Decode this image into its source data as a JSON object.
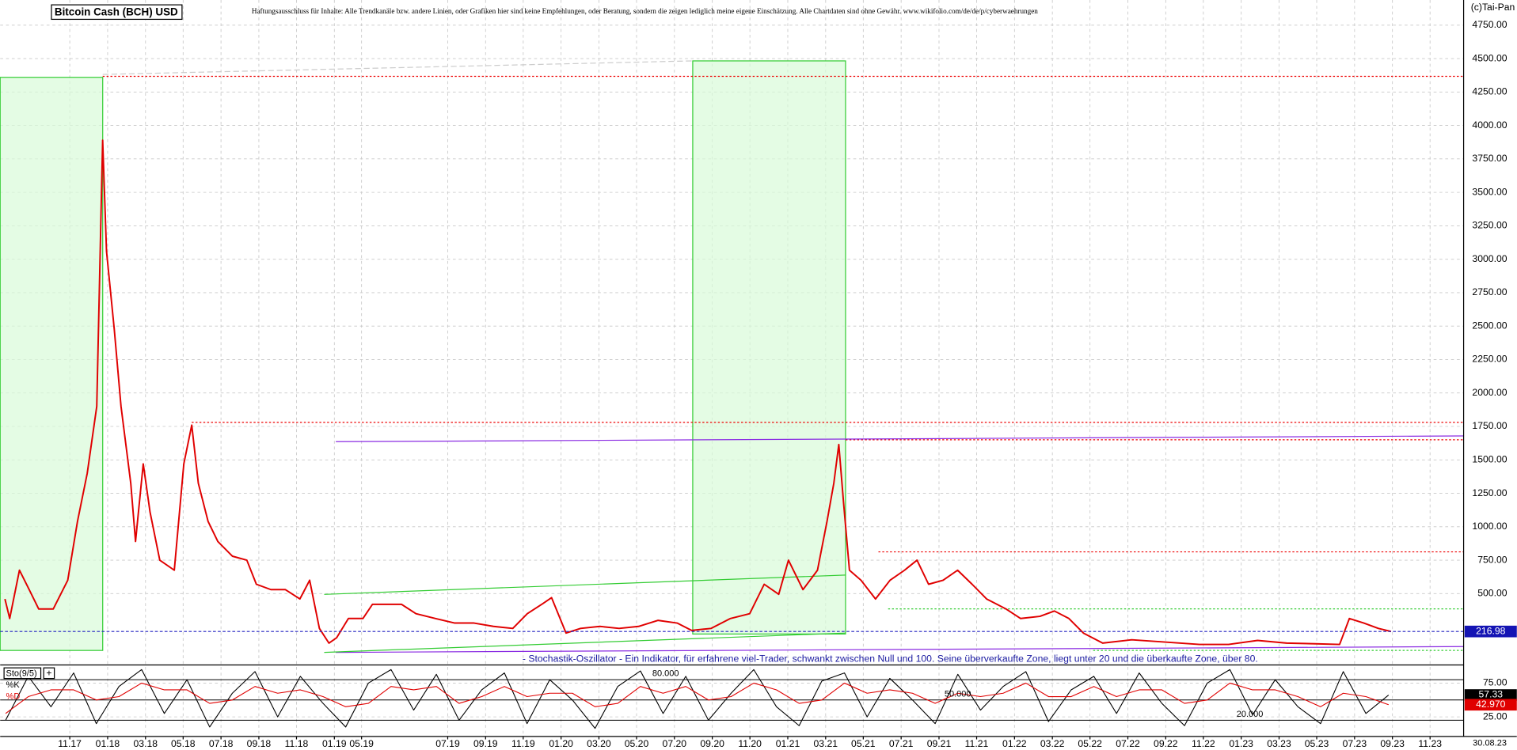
{
  "chart_data": [
    {
      "type": "line",
      "title": "Bitcoin Cash (BCH) USD",
      "subtitle": "Haftungsausschluss für Inhalte: Alle Trendkanäle bzw. andere Linien, oder Grafiken hier sind keine Empfehlungen, oder Beratung, sondern die zeigen lediglich meine eigene Einschätzung. Alle Chartdaten sind ohne Gewähr.  www.wikifolio.com/de/de/p/cyberwaehrungen",
      "copyright": "(c)Tai-Pan",
      "date_label": "30.08.23",
      "current": {
        "value": 216.98,
        "label": "216.98"
      },
      "grid": true,
      "xlim": [
        2017.526,
        2023.981
      ],
      "xticks": [
        {
          "value": 2017.833,
          "label": "11.17"
        },
        {
          "value": 2018.0,
          "label": "01.18"
        },
        {
          "value": 2018.167,
          "label": "03.18"
        },
        {
          "value": 2018.333,
          "label": "05.18"
        },
        {
          "value": 2018.5,
          "label": "07.18"
        },
        {
          "value": 2018.667,
          "label": "09.18"
        },
        {
          "value": 2018.833,
          "label": "11.18"
        },
        {
          "value": 2019.0,
          "label": "01.19"
        },
        {
          "value": 2019.12,
          "label": "05.19"
        },
        {
          "value": 2019.5,
          "label": "07.19"
        },
        {
          "value": 2019.667,
          "label": "09.19"
        },
        {
          "value": 2019.833,
          "label": "11.19"
        },
        {
          "value": 2020.0,
          "label": "01.20"
        },
        {
          "value": 2020.167,
          "label": "03.20"
        },
        {
          "value": 2020.333,
          "label": "05.20"
        },
        {
          "value": 2020.5,
          "label": "07.20"
        },
        {
          "value": 2020.667,
          "label": "09.20"
        },
        {
          "value": 2020.833,
          "label": "11.20"
        },
        {
          "value": 2021.0,
          "label": "01.21"
        },
        {
          "value": 2021.167,
          "label": "03.21"
        },
        {
          "value": 2021.333,
          "label": "05.21"
        },
        {
          "value": 2021.5,
          "label": "07.21"
        },
        {
          "value": 2021.667,
          "label": "09.21"
        },
        {
          "value": 2021.833,
          "label": "11.21"
        },
        {
          "value": 2022.0,
          "label": "01.22"
        },
        {
          "value": 2022.167,
          "label": "03.22"
        },
        {
          "value": 2022.333,
          "label": "05.22"
        },
        {
          "value": 2022.5,
          "label": "07.22"
        },
        {
          "value": 2022.667,
          "label": "09.22"
        },
        {
          "value": 2022.833,
          "label": "11.22"
        },
        {
          "value": 2023.0,
          "label": "01.23"
        },
        {
          "value": 2023.167,
          "label": "03.23"
        },
        {
          "value": 2023.333,
          "label": "05.23"
        },
        {
          "value": 2023.5,
          "label": "07.23"
        },
        {
          "value": 2023.667,
          "label": "09.23"
        },
        {
          "value": 2023.833,
          "label": "11.23"
        }
      ],
      "ylim": [
        0,
        4938
      ],
      "yticks": [
        {
          "value": 500,
          "label": "500.00"
        },
        {
          "value": 750,
          "label": "750.00"
        },
        {
          "value": 1000,
          "label": "1000.00"
        },
        {
          "value": 1250,
          "label": "1250.00"
        },
        {
          "value": 1500,
          "label": "1500.00"
        },
        {
          "value": 1750,
          "label": "1750.00"
        },
        {
          "value": 2000,
          "label": "2000.00"
        },
        {
          "value": 2250,
          "label": "2250.00"
        },
        {
          "value": 2500,
          "label": "2500.00"
        },
        {
          "value": 2750,
          "label": "2750.00"
        },
        {
          "value": 3000,
          "label": "3000.00"
        },
        {
          "value": 3250,
          "label": "3250.00"
        },
        {
          "value": 3500,
          "label": "3500.00"
        },
        {
          "value": 3750,
          "label": "3750.00"
        },
        {
          "value": 4000,
          "label": "4000.00"
        },
        {
          "value": 4250,
          "label": "4250.00"
        },
        {
          "value": 4500,
          "label": "4500.00"
        },
        {
          "value": 4750,
          "label": "4750.00"
        }
      ],
      "x": [
        2017.547,
        2017.568,
        2017.611,
        2017.654,
        2017.696,
        2017.76,
        2017.824,
        2017.867,
        2017.91,
        2017.952,
        2017.978,
        2017.995,
        2018.029,
        2018.059,
        2018.102,
        2018.123,
        2018.157,
        2018.187,
        2018.23,
        2018.294,
        2018.336,
        2018.371,
        2018.4,
        2018.443,
        2018.486,
        2018.55,
        2018.614,
        2018.656,
        2018.72,
        2018.784,
        2018.848,
        2018.891,
        2018.934,
        2018.976,
        2019.01,
        2019.062,
        2019.126,
        2019.168,
        2019.232,
        2019.296,
        2019.36,
        2019.446,
        2019.531,
        2019.616,
        2019.702,
        2019.787,
        2019.851,
        2019.915,
        2019.958,
        2020.022,
        2020.086,
        2020.171,
        2020.256,
        2020.342,
        2020.427,
        2020.512,
        2020.576,
        2020.662,
        2020.747,
        2020.832,
        2020.896,
        2020.96,
        2021.003,
        2021.067,
        2021.131,
        2021.173,
        2021.203,
        2021.225,
        2021.246,
        2021.272,
        2021.323,
        2021.387,
        2021.451,
        2021.515,
        2021.57,
        2021.621,
        2021.685,
        2021.749,
        2021.813,
        2021.877,
        2021.963,
        2022.027,
        2022.112,
        2022.176,
        2022.24,
        2022.304,
        2022.389,
        2022.517,
        2022.645,
        2022.816,
        2022.944,
        2023.072,
        2023.2,
        2023.328,
        2023.434,
        2023.477,
        2023.541,
        2023.605,
        2023.661
      ],
      "series": [
        {
          "name": "Bitcoin Cash (BCH) USD",
          "color": "#e00000",
          "values": [
            460,
            314,
            675,
            530,
            385,
            385,
            600,
            1040,
            1400,
            1900,
            3890,
            3060,
            2480,
            1900,
            1325,
            890,
            1470,
            1110,
            750,
            675,
            1470,
            1760,
            1325,
            1040,
            890,
            780,
            750,
            570,
            530,
            530,
            460,
            600,
            240,
            130,
            170,
            314,
            314,
            420,
            420,
            420,
            350,
            314,
            280,
            280,
            255,
            240,
            350,
            420,
            470,
            205,
            240,
            255,
            240,
            255,
            300,
            280,
            225,
            240,
            314,
            350,
            570,
            495,
            750,
            530,
            675,
            1040,
            1325,
            1615,
            1180,
            675,
            600,
            460,
            600,
            675,
            750,
            570,
            600,
            675,
            570,
            460,
            385,
            314,
            330,
            370,
            314,
            205,
            130,
            155,
            140,
            120,
            120,
            150,
            130,
            125,
            120,
            314,
            280,
            240,
            217
          ]
        }
      ]
    },
    {
      "type": "line",
      "title": "Sto(9/5)",
      "description": "- Stochastik-Oszillator - Ein Indikator, für erfahrene viel-Trader, schwankt zwischen Null und 100. Seine überverkaufte Zone, liegt unter 20 und die überkaufte Zone, über 80.",
      "ylim": [
        -4,
        99
      ],
      "yticks": [
        {
          "value": 25,
          "label": "25.00"
        },
        {
          "value": 75,
          "label": "75.00"
        }
      ],
      "levels": [
        {
          "value": 80,
          "label": "80.000"
        },
        {
          "value": 50,
          "label": "50.000"
        },
        {
          "value": 20,
          "label": "20.000"
        }
      ],
      "x": [
        2017.55,
        2017.65,
        2017.75,
        2017.85,
        2017.95,
        2018.05,
        2018.15,
        2018.25,
        2018.35,
        2018.45,
        2018.55,
        2018.65,
        2018.75,
        2018.85,
        2018.95,
        2019.05,
        2019.15,
        2019.25,
        2019.35,
        2019.45,
        2019.55,
        2019.65,
        2019.75,
        2019.85,
        2019.95,
        2020.05,
        2020.15,
        2020.25,
        2020.35,
        2020.45,
        2020.55,
        2020.65,
        2020.75,
        2020.85,
        2020.95,
        2021.05,
        2021.15,
        2021.25,
        2021.35,
        2021.45,
        2021.55,
        2021.65,
        2021.75,
        2021.85,
        2021.95,
        2022.05,
        2022.15,
        2022.25,
        2022.35,
        2022.45,
        2022.55,
        2022.65,
        2022.75,
        2022.85,
        2022.95,
        2023.05,
        2023.15,
        2023.25,
        2023.35,
        2023.45,
        2023.55,
        2023.65
      ],
      "series": [
        {
          "name": "%K",
          "color": "#000000",
          "current_label": "57.33",
          "values": [
            20,
            85,
            40,
            90,
            15,
            70,
            95,
            30,
            80,
            10,
            60,
            92,
            25,
            85,
            45,
            10,
            75,
            95,
            35,
            88,
            20,
            65,
            90,
            15,
            80,
            50,
            8,
            70,
            93,
            30,
            85,
            20,
            60,
            95,
            40,
            12,
            78,
            90,
            25,
            82,
            50,
            15,
            88,
            35,
            70,
            92,
            18,
            65,
            85,
            30,
            90,
            45,
            12,
            75,
            95,
            28,
            80,
            40,
            15,
            92,
            30,
            57.33
          ]
        },
        {
          "name": "%D",
          "color": "#e00000",
          "current_label": "42.970",
          "values": [
            30,
            55,
            65,
            65,
            50,
            55,
            75,
            65,
            65,
            45,
            50,
            70,
            60,
            65,
            55,
            40,
            45,
            70,
            65,
            70,
            45,
            55,
            70,
            55,
            60,
            60,
            40,
            45,
            70,
            60,
            70,
            50,
            55,
            75,
            65,
            45,
            50,
            75,
            60,
            65,
            60,
            45,
            60,
            55,
            60,
            75,
            55,
            55,
            70,
            55,
            65,
            65,
            45,
            50,
            75,
            65,
            65,
            55,
            40,
            60,
            55,
            42.97
          ]
        }
      ]
    }
  ]
}
